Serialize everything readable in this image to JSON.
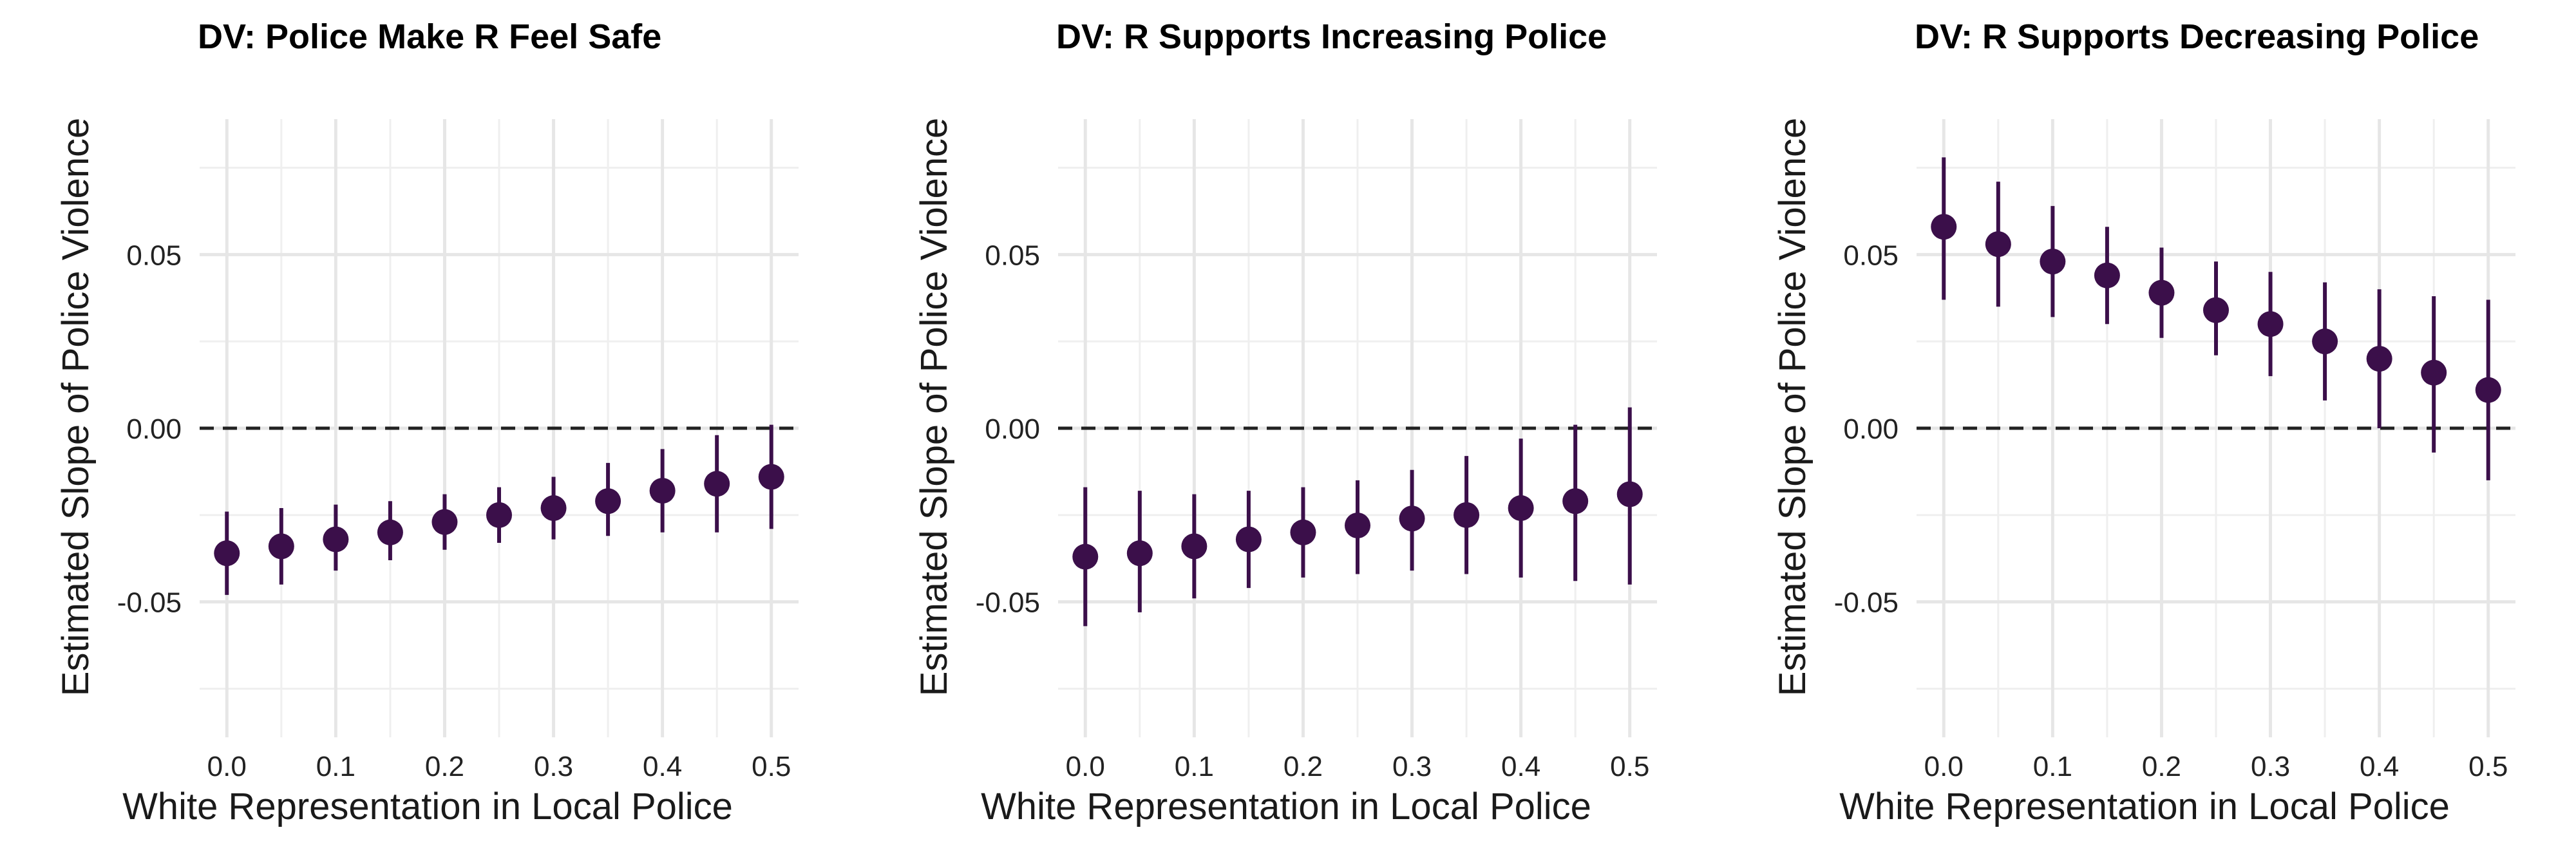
{
  "chart_data": [
    {
      "type": "scatter",
      "title": "DV: Police Make R Feel Safe",
      "xlabel": "White Representation in Local Police",
      "ylabel": "Estimated Slope of Police Violence",
      "xlim": [
        -0.025,
        0.525
      ],
      "ylim": [
        -0.089,
        0.089
      ],
      "x_ticks": [
        "0.0",
        "0.1",
        "0.2",
        "0.3",
        "0.4",
        "0.5"
      ],
      "y_ticks": [
        "0.05",
        "0.00",
        "-0.05"
      ],
      "reference_line": 0,
      "grid": true,
      "point_color": "#3b0f4a",
      "points": [
        {
          "x": 0.0,
          "y": -0.036,
          "lo": -0.048,
          "hi": -0.024
        },
        {
          "x": 0.05,
          "y": -0.034,
          "lo": -0.045,
          "hi": -0.023
        },
        {
          "x": 0.1,
          "y": -0.032,
          "lo": -0.041,
          "hi": -0.022
        },
        {
          "x": 0.15,
          "y": -0.03,
          "lo": -0.038,
          "hi": -0.021
        },
        {
          "x": 0.2,
          "y": -0.027,
          "lo": -0.035,
          "hi": -0.019
        },
        {
          "x": 0.25,
          "y": -0.025,
          "lo": -0.033,
          "hi": -0.017
        },
        {
          "x": 0.3,
          "y": -0.023,
          "lo": -0.032,
          "hi": -0.014
        },
        {
          "x": 0.35,
          "y": -0.021,
          "lo": -0.031,
          "hi": -0.01
        },
        {
          "x": 0.4,
          "y": -0.018,
          "lo": -0.03,
          "hi": -0.006
        },
        {
          "x": 0.45,
          "y": -0.016,
          "lo": -0.03,
          "hi": -0.002
        },
        {
          "x": 0.5,
          "y": -0.014,
          "lo": -0.029,
          "hi": 0.001
        }
      ]
    },
    {
      "type": "scatter",
      "title": "DV: R Supports Increasing Police",
      "xlabel": "White Representation in Local Police",
      "ylabel": "Estimated Slope of Police Violence",
      "xlim": [
        -0.025,
        0.525
      ],
      "ylim": [
        -0.089,
        0.089
      ],
      "x_ticks": [
        "0.0",
        "0.1",
        "0.2",
        "0.3",
        "0.4",
        "0.5"
      ],
      "y_ticks": [
        "0.05",
        "0.00",
        "-0.05"
      ],
      "reference_line": 0,
      "grid": true,
      "point_color": "#3b0f4a",
      "points": [
        {
          "x": 0.0,
          "y": -0.037,
          "lo": -0.057,
          "hi": -0.017
        },
        {
          "x": 0.05,
          "y": -0.036,
          "lo": -0.053,
          "hi": -0.018
        },
        {
          "x": 0.1,
          "y": -0.034,
          "lo": -0.049,
          "hi": -0.019
        },
        {
          "x": 0.15,
          "y": -0.032,
          "lo": -0.046,
          "hi": -0.018
        },
        {
          "x": 0.2,
          "y": -0.03,
          "lo": -0.043,
          "hi": -0.017
        },
        {
          "x": 0.25,
          "y": -0.028,
          "lo": -0.042,
          "hi": -0.015
        },
        {
          "x": 0.3,
          "y": -0.026,
          "lo": -0.041,
          "hi": -0.012
        },
        {
          "x": 0.35,
          "y": -0.025,
          "lo": -0.042,
          "hi": -0.008
        },
        {
          "x": 0.4,
          "y": -0.023,
          "lo": -0.043,
          "hi": -0.003
        },
        {
          "x": 0.45,
          "y": -0.021,
          "lo": -0.044,
          "hi": 0.001
        },
        {
          "x": 0.5,
          "y": -0.019,
          "lo": -0.045,
          "hi": 0.006
        }
      ]
    },
    {
      "type": "scatter",
      "title": "DV: R Supports Decreasing Police",
      "xlabel": "White Representation in Local Police",
      "ylabel": "Estimated Slope of Police Violence",
      "xlim": [
        -0.025,
        0.525
      ],
      "ylim": [
        -0.089,
        0.089
      ],
      "x_ticks": [
        "0.0",
        "0.1",
        "0.2",
        "0.3",
        "0.4",
        "0.5"
      ],
      "y_ticks": [
        "0.05",
        "0.00",
        "-0.05"
      ],
      "reference_line": 0,
      "grid": true,
      "point_color": "#3b0f4a",
      "points": [
        {
          "x": 0.0,
          "y": 0.058,
          "lo": 0.037,
          "hi": 0.078
        },
        {
          "x": 0.05,
          "y": 0.053,
          "lo": 0.035,
          "hi": 0.071
        },
        {
          "x": 0.1,
          "y": 0.048,
          "lo": 0.032,
          "hi": 0.064
        },
        {
          "x": 0.15,
          "y": 0.044,
          "lo": 0.03,
          "hi": 0.058
        },
        {
          "x": 0.2,
          "y": 0.039,
          "lo": 0.026,
          "hi": 0.052
        },
        {
          "x": 0.25,
          "y": 0.034,
          "lo": 0.021,
          "hi": 0.048
        },
        {
          "x": 0.3,
          "y": 0.03,
          "lo": 0.015,
          "hi": 0.045
        },
        {
          "x": 0.35,
          "y": 0.025,
          "lo": 0.008,
          "hi": 0.042
        },
        {
          "x": 0.4,
          "y": 0.02,
          "lo": 0.0,
          "hi": 0.04
        },
        {
          "x": 0.45,
          "y": 0.016,
          "lo": -0.007,
          "hi": 0.038
        },
        {
          "x": 0.5,
          "y": 0.011,
          "lo": -0.015,
          "hi": 0.037
        }
      ]
    }
  ]
}
